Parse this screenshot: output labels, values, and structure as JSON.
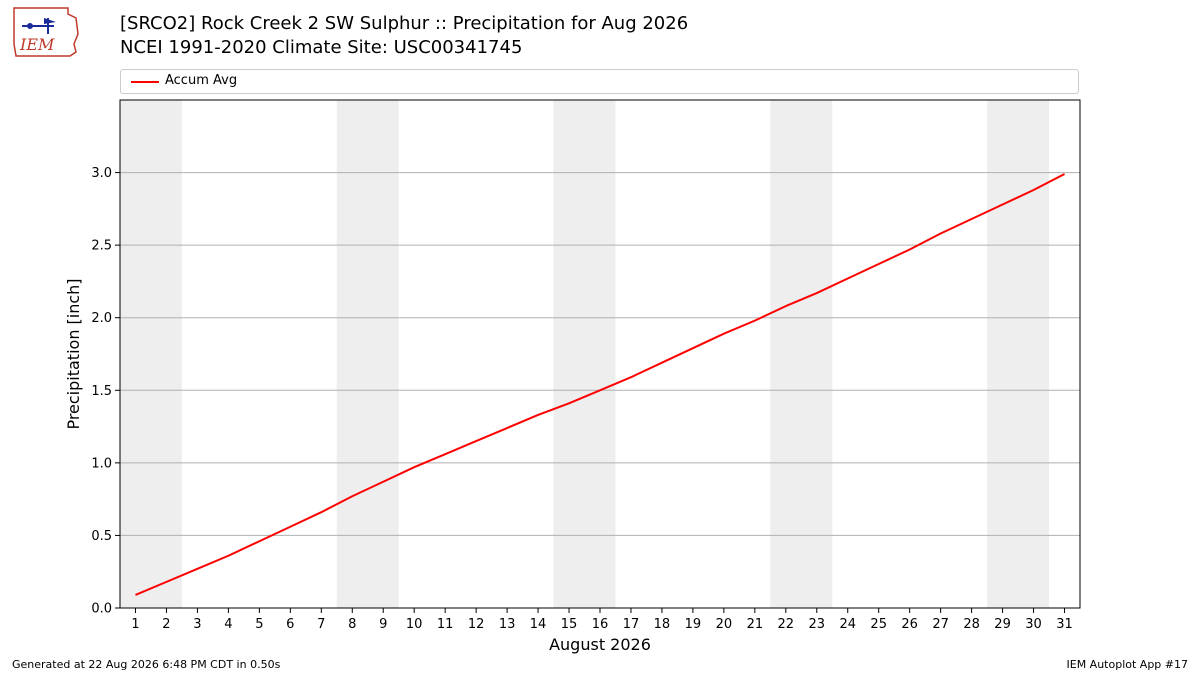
{
  "header": {
    "logo_text": "IEM",
    "title_line1": "[SRCO2] Rock Creek 2 SW Sulphur :: Precipitation for Aug 2026",
    "title_line2": "NCEI 1991-2020 Climate Site: USC00341745"
  },
  "legend": {
    "label": "Accum Avg",
    "color": "#ff0000"
  },
  "footer": {
    "left": "Generated at 22 Aug 2026 6:48 PM CDT in 0.50s",
    "right": "IEM Autoplot App #17"
  },
  "chart_data": {
    "type": "line",
    "xlabel": "August 2026",
    "ylabel": "Precipitation [inch]",
    "x": [
      1,
      2,
      3,
      4,
      5,
      6,
      7,
      8,
      9,
      10,
      11,
      12,
      13,
      14,
      15,
      16,
      17,
      18,
      19,
      20,
      21,
      22,
      23,
      24,
      25,
      26,
      27,
      28,
      29,
      30,
      31
    ],
    "xlim": [
      0.5,
      31.5
    ],
    "ylim": [
      0,
      3.5
    ],
    "yticks": [
      0.0,
      0.5,
      1.0,
      1.5,
      2.0,
      2.5,
      3.0
    ],
    "ytick_labels": [
      "0.0",
      "0.5",
      "1.0",
      "1.5",
      "2.0",
      "2.5",
      "3.0"
    ],
    "xtick_labels": [
      "1",
      "2",
      "3",
      "4",
      "5",
      "6",
      "7",
      "8",
      "9",
      "10",
      "11",
      "12",
      "13",
      "14",
      "15",
      "16",
      "17",
      "18",
      "19",
      "20",
      "21",
      "22",
      "23",
      "24",
      "25",
      "26",
      "27",
      "28",
      "29",
      "30",
      "31"
    ],
    "grid": "y",
    "weekend_shading": [
      [
        1,
        2
      ],
      [
        8,
        9
      ],
      [
        15,
        16
      ],
      [
        22,
        23
      ],
      [
        29,
        30
      ]
    ],
    "weekend_color": "#eeeeee",
    "series": [
      {
        "name": "Accum Avg",
        "color": "#ff0000",
        "values": [
          0.09,
          0.18,
          0.27,
          0.36,
          0.46,
          0.56,
          0.66,
          0.77,
          0.87,
          0.97,
          1.06,
          1.15,
          1.24,
          1.33,
          1.41,
          1.5,
          1.59,
          1.69,
          1.79,
          1.89,
          1.98,
          2.08,
          2.17,
          2.27,
          2.37,
          2.47,
          2.58,
          2.68,
          2.78,
          2.88,
          2.99
        ]
      }
    ]
  }
}
